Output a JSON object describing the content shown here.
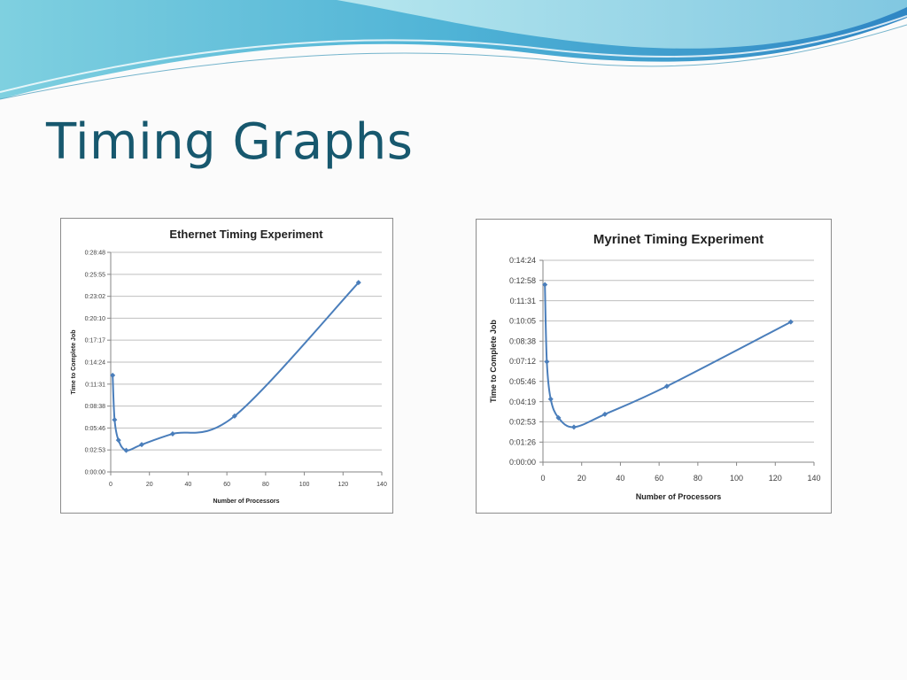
{
  "slide": {
    "title": "Timing Graphs",
    "colors": {
      "title": "#17586e",
      "series": "#4a7ebb",
      "grid": "#bfbfbf"
    }
  },
  "chart_data": [
    {
      "type": "line",
      "title": "Ethernet Timing Experiment",
      "xlabel": "Number of Processors",
      "ylabel": "Time to Complete Job",
      "xlim": [
        0,
        140
      ],
      "xticks": [
        "0",
        "20",
        "40",
        "60",
        "80",
        "100",
        "120",
        "140"
      ],
      "ylim": [
        "0:00:00",
        "0:28:48"
      ],
      "yticks": [
        "0:00:00",
        "0:02:53",
        "0:05:46",
        "0:08:38",
        "0:11:31",
        "0:14:24",
        "0:17:17",
        "0:20:10",
        "0:23:02",
        "0:25:55",
        "0:28:48"
      ],
      "grid": true,
      "legend": "none",
      "series": [
        {
          "x": [
            1,
            2,
            4,
            8,
            16,
            32,
            64,
            128
          ],
          "y": [
            "0:12:40",
            "0:06:50",
            "0:04:10",
            "0:02:50",
            "0:03:35",
            "0:05:00",
            "0:07:20",
            "0:24:50"
          ]
        }
      ]
    },
    {
      "type": "line",
      "title": "Myrinet Timing Experiment",
      "xlabel": "Number of Processors",
      "ylabel": "Time to Complete Job",
      "xlim": [
        0,
        140
      ],
      "xticks": [
        "0",
        "20",
        "40",
        "60",
        "80",
        "100",
        "120",
        "140"
      ],
      "ylim": [
        "0:00:00",
        "0:14:24"
      ],
      "yticks": [
        "0:00:00",
        "0:01:26",
        "0:02:53",
        "0:04:19",
        "0:05:46",
        "0:07:12",
        "0:08:38",
        "0:10:05",
        "0:11:31",
        "0:12:58",
        "0:14:24"
      ],
      "grid": true,
      "legend": "none",
      "series": [
        {
          "x": [
            1,
            2,
            4,
            8,
            16,
            32,
            64,
            128
          ],
          "y": [
            "0:12:40",
            "0:07:10",
            "0:04:30",
            "0:03:10",
            "0:02:30",
            "0:03:25",
            "0:05:25",
            "0:10:00"
          ]
        }
      ]
    }
  ]
}
